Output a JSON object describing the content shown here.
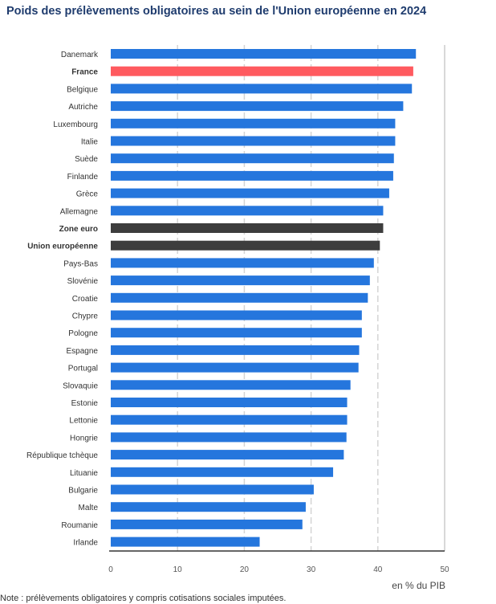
{
  "chart_data": {
    "type": "bar",
    "orientation": "horizontal",
    "title": "Poids des prélèvements obligatoires au sein de l'Union européenne en 2024",
    "xlabel": "en % du PIB",
    "xlim": [
      0,
      50
    ],
    "xticks": [
      0,
      10,
      20,
      30,
      40,
      50
    ],
    "grid": true,
    "categories": [
      "Danemark",
      "France",
      "Belgique",
      "Autriche",
      "Luxembourg",
      "Italie",
      "Suède",
      "Finlande",
      "Grèce",
      "Allemagne",
      "Zone euro",
      "Union européenne",
      "Pays-Bas",
      "Slovénie",
      "Croatie",
      "Chypre",
      "Pologne",
      "Espagne",
      "Portugal",
      "Slovaquie",
      "Estonie",
      "Lettonie",
      "Hongrie",
      "République tchèque",
      "Lituanie",
      "Bulgarie",
      "Malte",
      "Roumanie",
      "Irlande"
    ],
    "values": [
      45.7,
      45.3,
      45.1,
      43.8,
      42.6,
      42.6,
      42.4,
      42.3,
      41.7,
      40.8,
      40.8,
      40.3,
      39.4,
      38.8,
      38.5,
      37.6,
      37.6,
      37.2,
      37.1,
      35.9,
      35.4,
      35.4,
      35.3,
      34.9,
      33.3,
      30.4,
      29.2,
      28.7,
      22.3
    ],
    "highlighted": {
      "France": "#ff5a5f",
      "Zone euro": "#3d3d3d",
      "Union européenne": "#3d3d3d"
    },
    "bold_categories": [
      "France",
      "Zone euro",
      "Union européenne"
    ],
    "default_color": "#2576dd"
  },
  "note": "Note : prélèvements obligatoires y compris cotisations sociales imputées."
}
